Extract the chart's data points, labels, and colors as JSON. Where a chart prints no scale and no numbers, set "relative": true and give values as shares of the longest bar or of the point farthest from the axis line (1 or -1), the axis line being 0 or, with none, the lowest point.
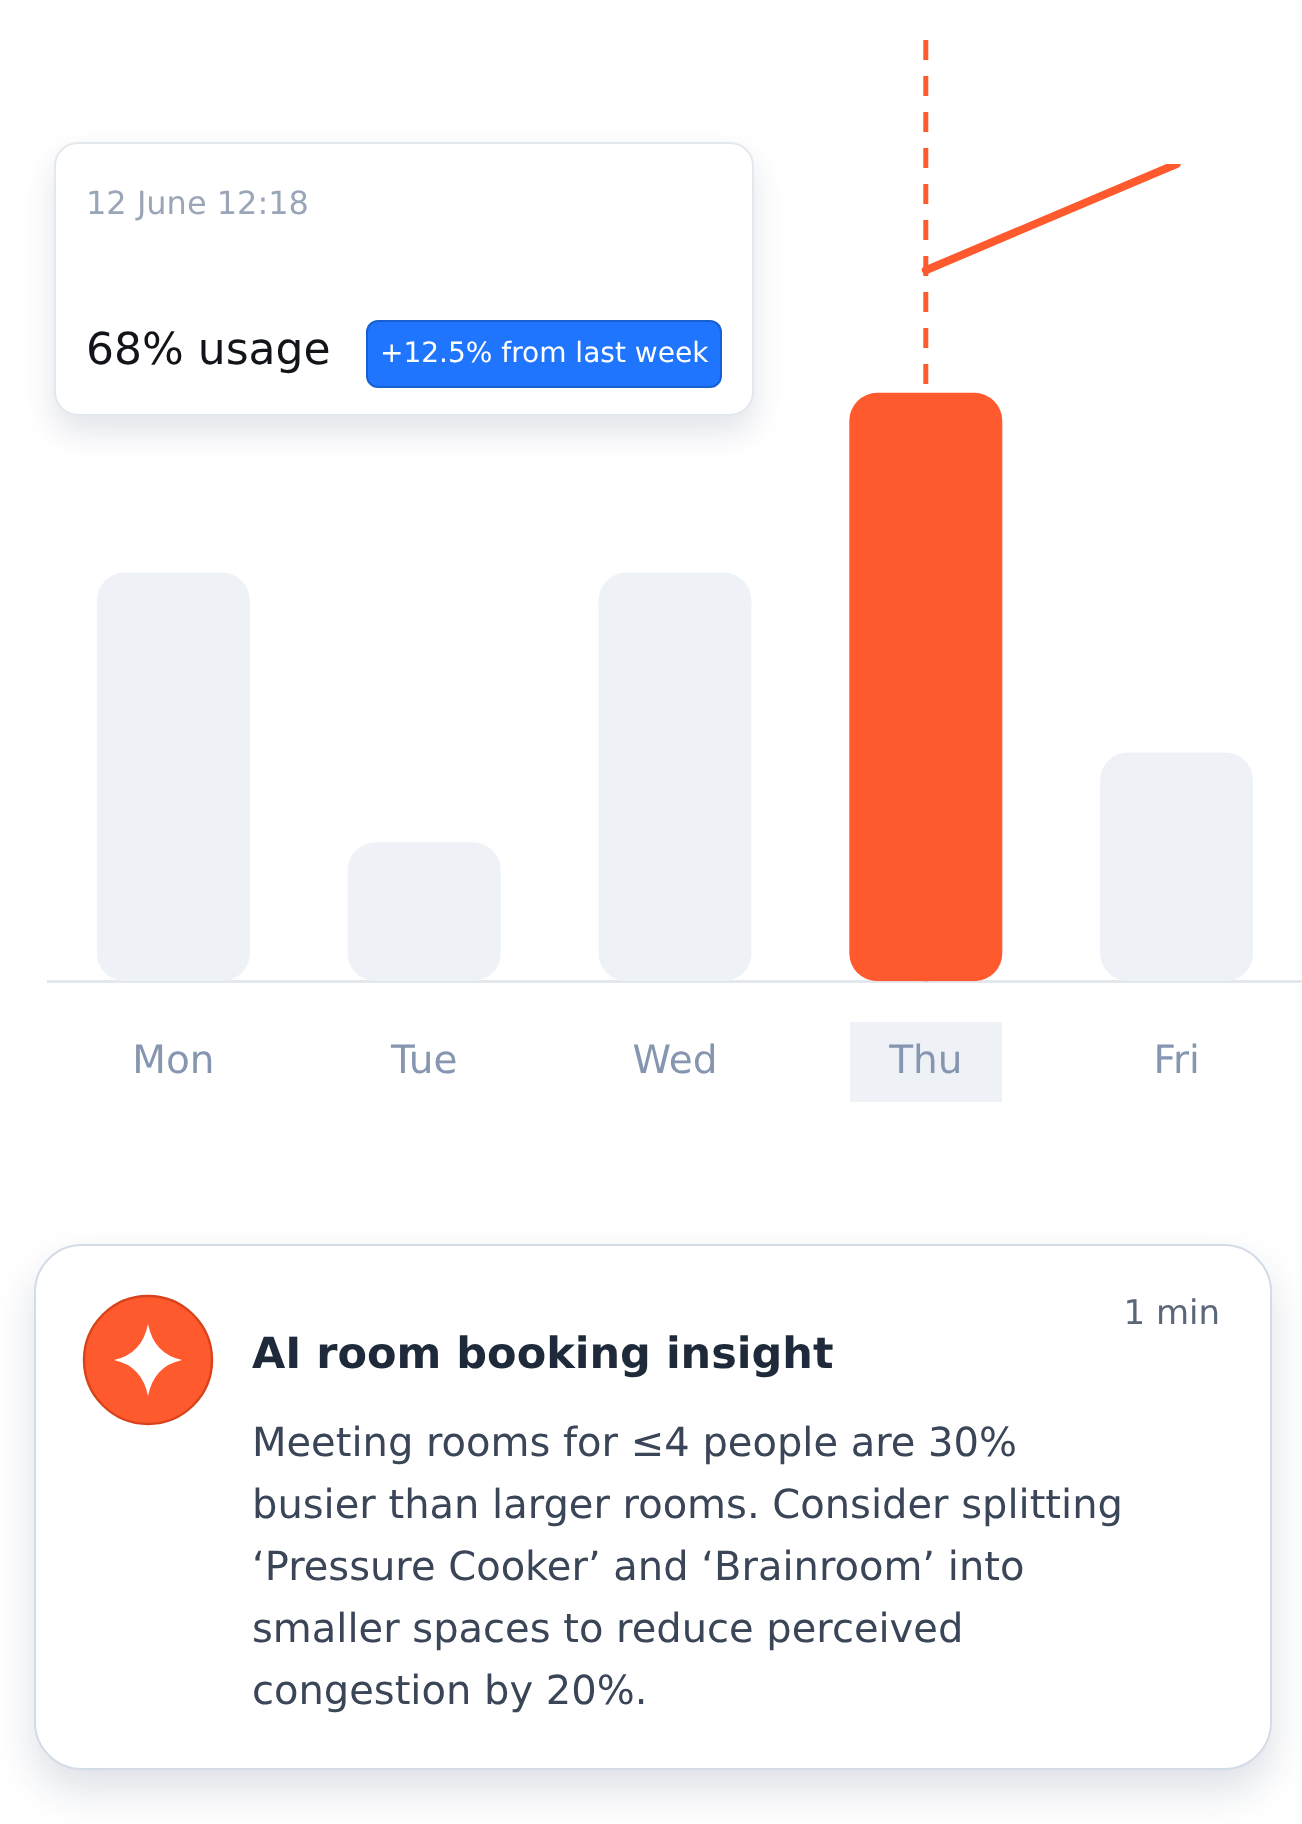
{
  "chart_data": [
    {
      "type": "bar",
      "categories": [
        "Mon",
        "Tue",
        "Wed",
        "Thu",
        "Fri"
      ],
      "relative": true,
      "series": [
        {
          "type": "bar",
          "colors": [
            "#eef2f7",
            "#eef2f7",
            "#eef2f7",
            "#ff5a2e",
            "#eef2f7"
          ],
          "values": [
            0.5,
            0.17,
            0.5,
            0.72,
            0.28
          ]
        },
        {
          "type": "line",
          "color": "#ff5a2e",
          "values": [
            null,
            null,
            null,
            0.87,
            1
          ]
        }
      ],
      "ref_lines": [
        {
          "axis": "x",
          "value": "Thu",
          "color": "#ff5a2e",
          "line_style": "dashed"
        }
      ],
      "annotations": [
        "12 June 12:18",
        "68% usage",
        "+12.5% from last week"
      ]
    },
    {
      "type": "other",
      "title": "AI room booking insight",
      "annotations": [
        "1 min",
        "Meeting rooms for ≤4 people are 30% busier than larger rooms. Consider splitting ‘Pressure Cooker’ and ‘Brainroom’ into smaller spaces to reduce perceived congestion by 20%."
      ]
    }
  ]
}
